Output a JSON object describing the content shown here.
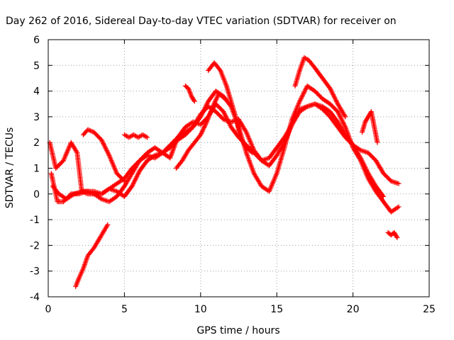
{
  "chart_data": {
    "type": "scatter",
    "title": "Day 262 of 2016, Sidereal Day-to-day VTEC variation (SDTVAR) for receiver on",
    "xlabel": "GPS time / hours",
    "ylabel": "SDTVAR / TECUs",
    "xlim": [
      0,
      25
    ],
    "ylim": [
      -4,
      6
    ],
    "xticks": [
      "0",
      "5",
      "10",
      "15",
      "20",
      "25"
    ],
    "yticks": [
      "-4",
      "-3",
      "-2",
      "-1",
      "0",
      "1",
      "2",
      "3",
      "4",
      "5",
      "6"
    ],
    "grid": true,
    "marker": "plus",
    "color": "#ff0000",
    "series": [
      {
        "x": [
          0.1,
          0.5,
          1.0,
          1.5,
          1.9,
          2.2,
          2.6,
          3.0,
          3.5,
          4.0,
          4.5,
          5.0,
          5.5,
          6.0,
          6.5,
          7.0,
          7.5,
          8.0,
          8.5,
          9.0,
          9.5,
          10.0,
          10.5,
          11.0,
          11.5,
          12.0,
          12.5,
          13.0,
          13.5,
          14.0,
          14.5,
          15.0,
          15.5,
          16.0,
          16.5,
          17.0,
          17.5,
          18.0,
          18.5,
          19.0,
          19.5,
          20.0,
          20.5,
          21.0,
          21.5,
          22.0,
          22.5,
          23.0
        ],
        "y": [
          2.0,
          1.0,
          1.3,
          2.0,
          1.6,
          0.1,
          0.0,
          0.0,
          -0.2,
          -0.3,
          -0.1,
          0.3,
          0.8,
          1.3,
          1.6,
          1.8,
          1.6,
          1.4,
          2.2,
          2.6,
          2.8,
          2.7,
          3.0,
          3.5,
          3.2,
          2.6,
          2.2,
          1.9,
          1.6,
          1.3,
          1.4,
          1.8,
          2.2,
          2.7,
          3.2,
          3.4,
          3.5,
          3.3,
          3.0,
          2.6,
          2.2,
          1.9,
          1.7,
          1.6,
          1.3,
          0.8,
          0.5,
          0.4
        ]
      },
      {
        "x": [
          0.2,
          0.6,
          1.0,
          1.5,
          2.0,
          2.5,
          3.0,
          3.5,
          4.0,
          4.5,
          5.0,
          5.5,
          6.0,
          6.5,
          7.0,
          7.5,
          8.0,
          8.5,
          9.0,
          9.5,
          10.0,
          10.5,
          11.0,
          11.5,
          12.0,
          12.5,
          13.0,
          13.5,
          14.0,
          14.5,
          15.0,
          15.5,
          16.0,
          16.5,
          17.0,
          17.5,
          18.0,
          18.5,
          19.0,
          19.5,
          20.0,
          20.5,
          21.0,
          21.5,
          22.0,
          22.5,
          23.0
        ],
        "y": [
          0.8,
          -0.3,
          -0.3,
          0.0,
          0.0,
          0.1,
          0.1,
          0.0,
          0.2,
          0.1,
          -0.1,
          0.3,
          0.9,
          1.3,
          1.5,
          1.6,
          1.8,
          2.1,
          2.3,
          2.6,
          3.0,
          3.6,
          4.0,
          3.8,
          3.4,
          2.6,
          1.6,
          0.8,
          0.3,
          0.1,
          0.8,
          1.8,
          2.9,
          3.6,
          4.2,
          4.0,
          3.7,
          3.5,
          3.2,
          2.6,
          1.8,
          1.3,
          0.6,
          0.1,
          -0.3,
          -0.7,
          -0.5
        ]
      },
      {
        "x": [
          0.3,
          0.7,
          1.2,
          1.7,
          2.2,
          2.6,
          3.0,
          3.5,
          4.0,
          4.5,
          5.0,
          5.5,
          6.0,
          6.5,
          7.0,
          7.5,
          8.0,
          8.5,
          9.0,
          9.5,
          10.0,
          10.5,
          11.0,
          11.5,
          12.0,
          12.5,
          13.0,
          13.5,
          14.0,
          14.5,
          15.0,
          15.5,
          16.0,
          16.5,
          17.0,
          17.5,
          18.0,
          18.5,
          19.0,
          19.5,
          20.0,
          20.5,
          21.0,
          21.5,
          22.0
        ],
        "y": [
          0.3,
          0.0,
          -0.2,
          0.0,
          0.1,
          0.1,
          0.0,
          0.0,
          0.2,
          0.4,
          0.6,
          1.0,
          1.3,
          1.5,
          1.4,
          1.6,
          1.9,
          2.2,
          2.4,
          2.6,
          3.1,
          3.4,
          3.2,
          2.9,
          2.8,
          2.9,
          2.4,
          1.7,
          1.3,
          1.1,
          1.5,
          2.0,
          2.7,
          3.3,
          3.4,
          3.5,
          3.4,
          3.2,
          2.8,
          2.3,
          1.9,
          1.4,
          0.8,
          0.3,
          -0.1
        ]
      },
      {
        "x": [
          1.8,
          2.0,
          2.3,
          2.6,
          3.0,
          3.4,
          3.9
        ],
        "y": [
          -3.6,
          -3.3,
          -2.9,
          -2.4,
          -2.1,
          -1.7,
          -1.2
        ]
      },
      {
        "x": [
          2.3,
          2.6,
          3.0,
          3.5,
          4.0,
          4.5,
          5.0
        ],
        "y": [
          2.3,
          2.5,
          2.4,
          2.1,
          1.5,
          0.8,
          0.5
        ]
      },
      {
        "x": [
          5.0,
          5.3,
          5.6,
          5.9,
          6.2,
          6.5
        ],
        "y": [
          2.3,
          2.2,
          2.3,
          2.2,
          2.3,
          2.2
        ]
      },
      {
        "x": [
          8.4,
          8.8,
          9.2,
          9.6,
          10.0,
          10.4,
          10.8,
          11.2,
          11.6
        ],
        "y": [
          1.0,
          1.3,
          1.7,
          2.0,
          2.3,
          2.8,
          3.4,
          3.9,
          3.7
        ]
      },
      {
        "x": [
          9.0,
          9.2,
          9.4,
          9.6
        ],
        "y": [
          4.2,
          4.1,
          3.8,
          3.6
        ]
      },
      {
        "x": [
          10.5,
          10.9,
          11.3,
          11.7,
          12.0,
          12.3,
          12.6,
          13.0,
          13.4
        ],
        "y": [
          4.8,
          5.1,
          4.8,
          4.2,
          3.6,
          3.0,
          2.2,
          1.8,
          1.6
        ]
      },
      {
        "x": [
          16.2,
          16.5,
          16.8,
          17.1,
          17.5,
          18.0,
          18.5,
          19.0,
          19.5
        ],
        "y": [
          4.2,
          4.8,
          5.3,
          5.2,
          4.9,
          4.5,
          4.1,
          3.5,
          3.0
        ]
      },
      {
        "x": [
          20.6,
          20.8,
          21.0,
          21.2,
          21.4,
          21.6
        ],
        "y": [
          2.4,
          2.8,
          3.0,
          3.2,
          2.6,
          2.0
        ]
      },
      {
        "x": [
          22.3,
          22.5,
          22.7,
          22.9
        ],
        "y": [
          -1.5,
          -1.6,
          -1.5,
          -1.7
        ]
      }
    ]
  }
}
